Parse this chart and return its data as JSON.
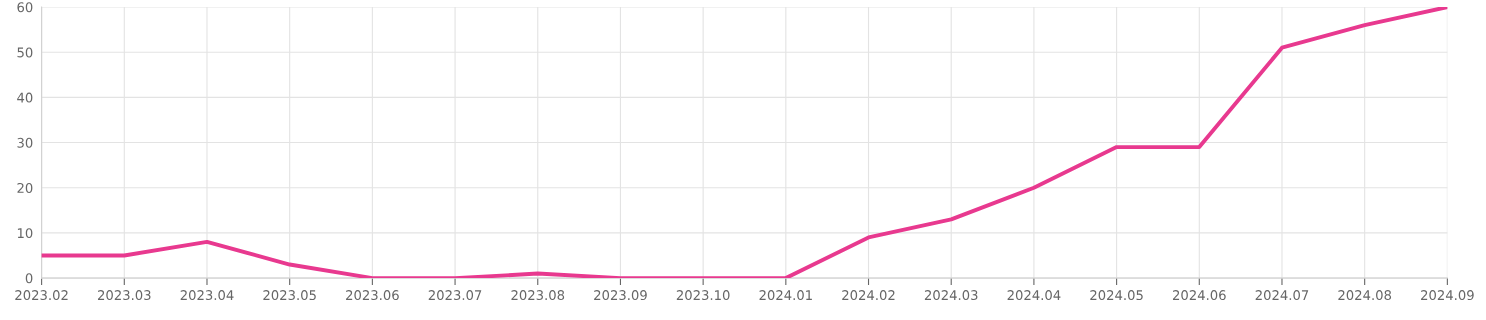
{
  "chart_data": {
    "type": "line",
    "categories": [
      "2023.02",
      "2023.03",
      "2023.04",
      "2023.05",
      "2023.06",
      "2023.07",
      "2023.08",
      "2023.09",
      "2023.10",
      "2024.01",
      "2024.02",
      "2024.03",
      "2024.04",
      "2024.05",
      "2024.06",
      "2024.07",
      "2024.08",
      "2024.09"
    ],
    "series": [
      {
        "color": "#e8398f",
        "values": [
          5,
          5,
          8,
          3,
          0,
          0,
          1,
          0,
          0,
          0,
          9,
          13,
          20,
          29,
          29,
          51,
          56,
          60
        ]
      }
    ],
    "ylim": [
      0,
      60
    ],
    "yticks": [
      0,
      10,
      20,
      30,
      40,
      50,
      60
    ],
    "grid": true,
    "marker": "none",
    "line_style": "solid"
  }
}
